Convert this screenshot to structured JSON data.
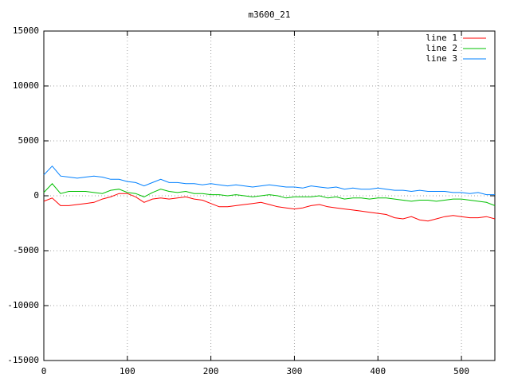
{
  "chart_data": {
    "type": "line",
    "title": "m3600_21",
    "x": [
      0,
      10,
      20,
      30,
      40,
      50,
      60,
      70,
      80,
      90,
      100,
      110,
      120,
      130,
      140,
      150,
      160,
      170,
      180,
      190,
      200,
      210,
      220,
      230,
      240,
      250,
      260,
      270,
      280,
      290,
      300,
      310,
      320,
      330,
      340,
      350,
      360,
      370,
      380,
      390,
      400,
      410,
      420,
      430,
      440,
      450,
      460,
      470,
      480,
      490,
      500,
      510,
      520,
      530,
      540
    ],
    "series": [
      {
        "name": "line 1",
        "color": "#ff0000",
        "values": [
          -500,
          -200,
          -900,
          -900,
          -800,
          -700,
          -600,
          -300,
          -100,
          200,
          200,
          -100,
          -600,
          -300,
          -200,
          -300,
          -200,
          -100,
          -300,
          -400,
          -700,
          -1000,
          -1000,
          -900,
          -800,
          -700,
          -600,
          -800,
          -1000,
          -1100,
          -1200,
          -1100,
          -900,
          -800,
          -1000,
          -1100,
          -1200,
          -1300,
          -1400,
          -1500,
          -1600,
          -1700,
          -2000,
          -2100,
          -1900,
          -2200,
          -2300,
          -2100,
          -1900,
          -1800,
          -1900,
          -2000,
          -2000,
          -1900,
          -2100
        ]
      },
      {
        "name": "line 2",
        "color": "#00c000",
        "values": [
          300,
          1100,
          200,
          400,
          400,
          400,
          300,
          200,
          500,
          600,
          300,
          200,
          -100,
          300,
          600,
          400,
          300,
          400,
          200,
          200,
          100,
          100,
          0,
          100,
          0,
          -100,
          0,
          100,
          0,
          -200,
          -100,
          -100,
          -100,
          0,
          -200,
          -100,
          -300,
          -200,
          -200,
          -300,
          -200,
          -200,
          -300,
          -400,
          -500,
          -400,
          -400,
          -500,
          -400,
          -300,
          -300,
          -400,
          -500,
          -600,
          -900
        ]
      },
      {
        "name": "line 3",
        "color": "#0080ff",
        "values": [
          1900,
          2700,
          1800,
          1700,
          1600,
          1700,
          1800,
          1700,
          1500,
          1500,
          1300,
          1200,
          900,
          1200,
          1500,
          1200,
          1200,
          1100,
          1100,
          1000,
          1100,
          1000,
          900,
          1000,
          900,
          800,
          900,
          1000,
          900,
          800,
          800,
          700,
          900,
          800,
          700,
          800,
          600,
          700,
          600,
          600,
          700,
          600,
          500,
          500,
          400,
          500,
          400,
          400,
          400,
          300,
          300,
          200,
          300,
          100,
          100
        ]
      }
    ],
    "xlim": [
      0,
      540
    ],
    "xticks": [
      0,
      100,
      200,
      300,
      400,
      500
    ],
    "ylim": [
      -15000,
      15000
    ],
    "yticks": [
      -15000,
      -10000,
      -5000,
      0,
      5000,
      10000,
      15000
    ],
    "grid": true,
    "legend": "top-right"
  }
}
